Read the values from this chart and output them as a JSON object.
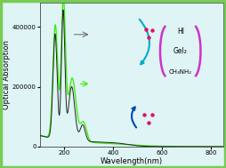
{
  "bg_color": "#dff4f4",
  "border_color": "#77cc55",
  "xlabel": "Wavelength(nm)",
  "ylabel": "Optical Absorption",
  "xlim": [
    100,
    850
  ],
  "ylim": [
    0,
    480000
  ],
  "yticks": [
    0,
    200000,
    400000
  ],
  "xticks": [
    200,
    400,
    600,
    800
  ],
  "axis_fontsize": 6.0,
  "tick_fontsize": 5.0,
  "line1_color": "#222222",
  "line2_color": "#33ee00",
  "arrow_color_top": "#00aacc",
  "arrow_color_bot": "#0044bb",
  "bracket_color": "#cc33cc",
  "dot_color": "#dd1166",
  "hi_text": "HI",
  "gel2_text": "GeI₂",
  "ch3nh2_text": "CH₃NH₂"
}
